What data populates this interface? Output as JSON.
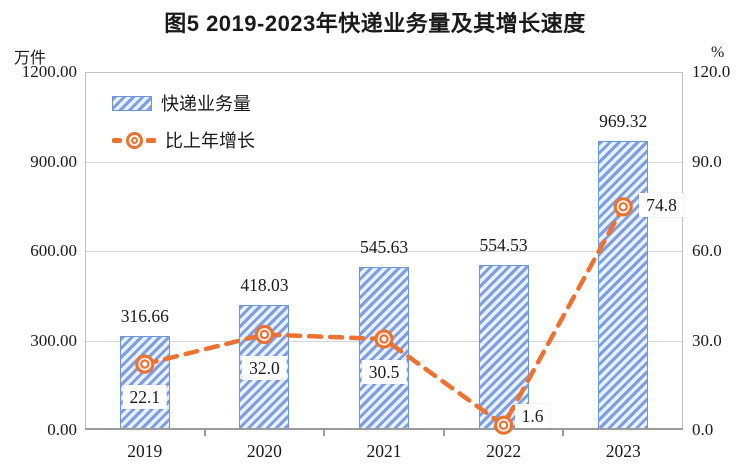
{
  "title": "图5 2019-2023年快递业务量及其增长速度",
  "axes": {
    "left": {
      "unit": "万件",
      "ticks": [
        "1200.00",
        "900.00",
        "600.00",
        "300.00",
        "0.00"
      ],
      "lim": [
        0,
        1200
      ]
    },
    "right": {
      "unit": "%",
      "ticks": [
        "120.0",
        "90.0",
        "60.0",
        "30.0",
        "0.0"
      ],
      "lim": [
        0,
        120
      ]
    }
  },
  "legend": {
    "items": [
      {
        "label": "快递业务量",
        "swatch": "hatched-bar"
      },
      {
        "label": "比上年增长",
        "swatch": "dashed-line-with-ring-marker"
      }
    ]
  },
  "colors": {
    "bar_stripe": "#7c9ee6",
    "bar_background": "#eaf1fb",
    "bar_border": "#6c95df",
    "line_orange": "#ed7231",
    "gridline": "#d6d6d6",
    "plot_border": "#c0c0c0",
    "axis_line": "#9b9b9b",
    "text": "#1a1a1a"
  },
  "chart_data": {
    "type": "bar",
    "title": "图5 2019-2023年快递业务量及其增长速度",
    "categories": [
      "2019",
      "2020",
      "2021",
      "2022",
      "2023"
    ],
    "series": [
      {
        "name": "快递业务量",
        "type": "bar",
        "axis": "left",
        "values": [
          316.66,
          418.03,
          545.63,
          554.53,
          969.32
        ],
        "value_labels": [
          "316.66",
          "418.03",
          "545.63",
          "554.53",
          "969.32"
        ]
      },
      {
        "name": "比上年增长",
        "type": "line",
        "axis": "right",
        "values": [
          22.1,
          32.0,
          30.5,
          1.6,
          74.8
        ],
        "value_labels": [
          "22.1",
          "32.0",
          "30.5",
          "1.6",
          "74.8"
        ],
        "label_side": [
          "below",
          "below",
          "below",
          "right",
          "right"
        ]
      }
    ],
    "xlabel": "",
    "ylabel_left": "万件",
    "ylabel_right": "%",
    "left_ylim": [
      0,
      1200
    ],
    "right_ylim": [
      0,
      120
    ],
    "grid": true,
    "legend_position": "top-left-inside"
  }
}
